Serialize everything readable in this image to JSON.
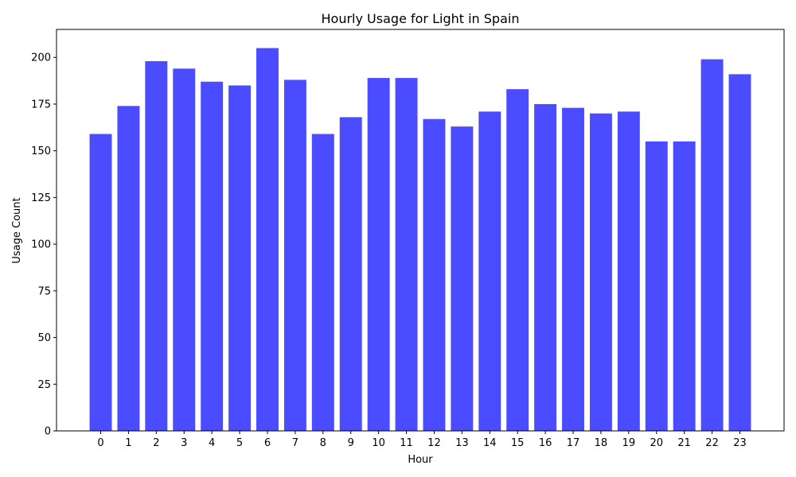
{
  "chart_data": {
    "type": "bar",
    "title": "Hourly Usage for Light in Spain",
    "xlabel": "Hour",
    "ylabel": "Usage Count",
    "categories": [
      "0",
      "1",
      "2",
      "3",
      "4",
      "5",
      "6",
      "7",
      "8",
      "9",
      "10",
      "11",
      "12",
      "13",
      "14",
      "15",
      "16",
      "17",
      "18",
      "19",
      "20",
      "21",
      "22",
      "23"
    ],
    "values": [
      159,
      174,
      198,
      194,
      187,
      185,
      205,
      188,
      159,
      168,
      189,
      189,
      167,
      163,
      171,
      183,
      175,
      173,
      170,
      171,
      155,
      155,
      199,
      191
    ],
    "ylim": [
      0,
      215
    ],
    "yticks": [
      0,
      25,
      50,
      75,
      100,
      125,
      150,
      175,
      200
    ],
    "bar_color": "#4b4bff",
    "grid": false,
    "legend": "none"
  }
}
